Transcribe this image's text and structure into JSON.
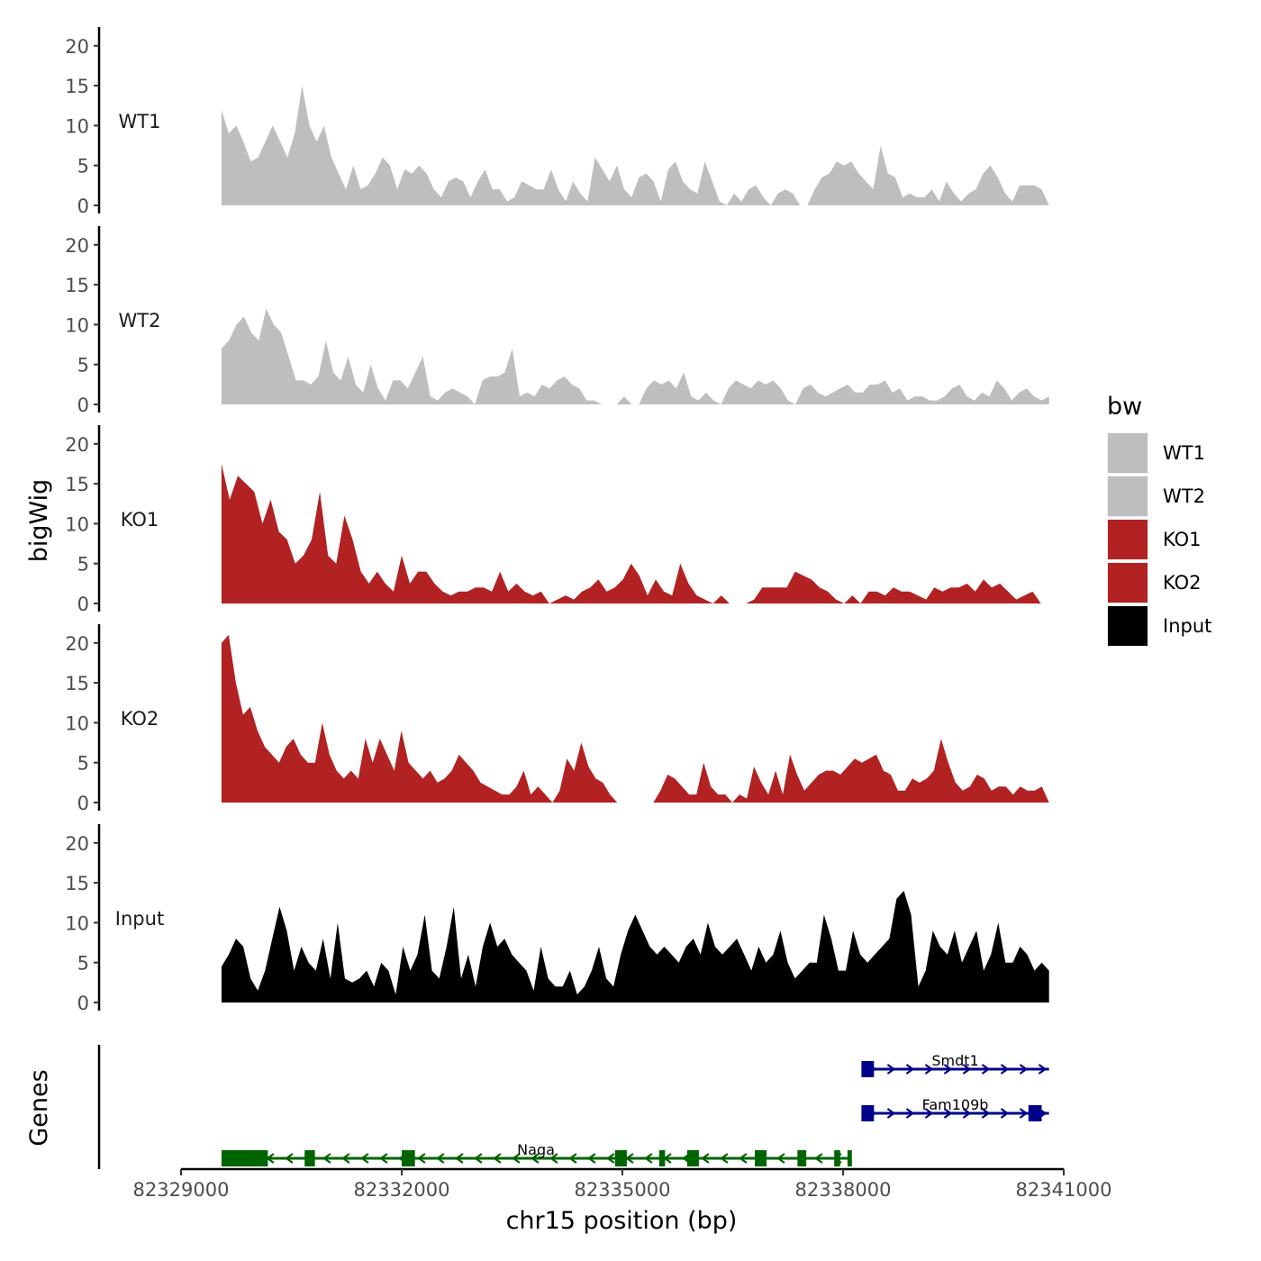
{
  "chart_data": {
    "type": "area",
    "region": "chr15",
    "xlabel": "chr15 position (bp)",
    "ylabel_tracks": "bigWig",
    "ylabel_genes": "Genes",
    "xlim": [
      82329000,
      82341000
    ],
    "x_ticks": [
      82329000,
      82332000,
      82335000,
      82338000,
      82341000
    ],
    "x_tick_labels": [
      "82329000",
      "82332000",
      "82335000",
      "82338000",
      "82341000"
    ],
    "y_ticks": [
      0,
      5,
      10,
      15,
      20
    ],
    "y_tick_labels": [
      "0",
      "5",
      "10",
      "15",
      "20"
    ],
    "ylim": [
      0,
      22
    ],
    "data_range": [
      82329550,
      82340800
    ],
    "legend": {
      "title": "bw",
      "items": [
        {
          "label": "WT1",
          "color": "#bebebe"
        },
        {
          "label": "WT2",
          "color": "#bebebe"
        },
        {
          "label": "KO1",
          "color": "#b22222"
        },
        {
          "label": "KO2",
          "color": "#b22222"
        },
        {
          "label": "Input",
          "color": "#000000"
        }
      ]
    },
    "series": [
      {
        "name": "WT1",
        "color": "#bebebe",
        "values": [
          12,
          9,
          10,
          8,
          5.5,
          6,
          8,
          10,
          8,
          6,
          9,
          15,
          10,
          8,
          10,
          6,
          4,
          2,
          5,
          2,
          2.5,
          4,
          6,
          5,
          2,
          4.5,
          4,
          5,
          4,
          2,
          1,
          3,
          3.5,
          3,
          1,
          3,
          4.5,
          2,
          2,
          0.5,
          1,
          3,
          2.5,
          2,
          2,
          4.5,
          2,
          0.5,
          3,
          1.5,
          0.5,
          6,
          4.5,
          3,
          5,
          2,
          1,
          3.5,
          4,
          3,
          0.5,
          4.5,
          5.5,
          3,
          2,
          1.5,
          5.5,
          3,
          0.5,
          0,
          1.5,
          0.5,
          2,
          2.5,
          1,
          0,
          1.5,
          2,
          1.5,
          0,
          0,
          2,
          3.5,
          4,
          5.5,
          5,
          5.5,
          4,
          3,
          2,
          7.5,
          4,
          3.5,
          1,
          1.5,
          1,
          1,
          2,
          0.5,
          3,
          1.5,
          0.5,
          1.5,
          2,
          4,
          5,
          3.5,
          1.5,
          0.5,
          2.5,
          2.5,
          2.5,
          2,
          0
        ]
      },
      {
        "name": "WT2",
        "color": "#bebebe",
        "values": [
          7,
          8,
          10,
          11,
          9,
          8,
          12,
          10,
          9,
          6,
          3,
          3,
          2.5,
          3.5,
          8,
          4,
          3,
          6,
          2.5,
          1.5,
          5,
          2,
          0.5,
          3,
          3,
          2,
          4,
          6,
          1,
          0.5,
          1.5,
          2,
          1.5,
          1,
          0,
          3,
          3.5,
          3.5,
          4,
          7,
          1,
          1.5,
          1,
          2.5,
          2,
          3,
          3.5,
          2.5,
          2,
          0.5,
          0.5,
          0,
          0,
          0,
          1,
          0,
          0,
          2,
          3,
          2.5,
          3,
          2,
          4,
          1,
          0.5,
          1.5,
          0.5,
          0,
          2,
          3,
          2.5,
          2,
          3,
          2.5,
          3,
          2,
          0.5,
          0,
          2,
          2.5,
          1.5,
          1,
          1.5,
          2,
          2.5,
          1.5,
          1.5,
          2.5,
          2.5,
          3,
          1.5,
          2,
          0.5,
          1,
          1,
          0.5,
          0.5,
          1,
          2,
          2.5,
          1,
          0.5,
          1.5,
          1,
          3,
          2,
          0.5,
          1.5,
          2,
          1,
          0.5,
          1
        ]
      },
      {
        "name": "KO1",
        "color": "#b22222",
        "values": [
          17.5,
          13,
          16,
          15,
          14,
          10,
          13,
          9,
          8,
          5,
          6,
          8,
          14,
          6,
          5,
          11,
          8,
          4,
          2.5,
          4,
          2.5,
          1.5,
          6,
          2.5,
          4,
          4,
          2.5,
          1.5,
          1,
          1.5,
          1.5,
          2,
          2,
          1.5,
          4,
          1.5,
          2.5,
          1.5,
          1,
          1.5,
          0,
          0.5,
          1,
          0.5,
          1.5,
          2,
          3,
          1.5,
          2,
          3,
          5,
          3.5,
          1,
          3,
          1.5,
          1,
          5,
          2.5,
          1,
          0.5,
          0,
          1,
          0,
          0,
          0,
          0.5,
          2,
          2,
          2,
          2,
          4,
          3.5,
          3,
          2,
          1.5,
          0.5,
          0,
          1,
          0,
          1.5,
          1.5,
          1,
          2,
          1.5,
          1.5,
          1,
          0.5,
          2,
          1.5,
          2,
          2,
          2.5,
          1.5,
          3,
          2,
          2.5,
          1.5,
          0.5,
          1,
          1.5,
          0,
          0
        ]
      },
      {
        "name": "KO2",
        "color": "#b22222",
        "values": [
          20,
          21,
          15,
          11,
          12,
          9,
          7,
          6,
          5,
          7,
          8,
          6,
          5,
          5,
          10,
          6,
          4,
          3,
          4,
          3,
          8,
          5,
          8,
          6,
          4,
          9,
          5,
          4,
          3,
          4,
          2.5,
          3,
          4,
          6,
          5,
          4,
          2.5,
          2,
          1.5,
          1,
          1,
          2,
          4,
          1,
          2,
          1,
          0,
          1.5,
          5.5,
          4,
          7.5,
          4.5,
          3,
          2.5,
          1,
          0,
          0,
          0,
          0,
          0,
          0,
          1.5,
          3.5,
          3,
          2,
          1,
          1,
          5,
          2,
          1,
          1,
          0,
          1,
          0.5,
          4.5,
          2.5,
          1,
          4,
          1,
          6,
          3.5,
          1.5,
          2.5,
          3.5,
          4,
          4,
          3.5,
          4.5,
          5.5,
          5,
          5.5,
          6,
          4,
          3.5,
          1.5,
          1.5,
          3,
          2.5,
          3,
          4,
          8,
          5,
          2.5,
          1.5,
          2,
          3.5,
          3,
          1.5,
          2,
          2,
          1,
          2,
          1.5,
          1.5,
          2,
          0
        ]
      },
      {
        "name": "Input",
        "color": "#000000",
        "values": [
          4.5,
          6,
          8,
          7,
          3,
          1.5,
          4,
          8,
          12,
          9,
          4,
          7,
          5,
          4,
          8,
          3,
          10,
          3,
          2.5,
          3,
          4,
          2,
          5,
          4,
          1,
          7,
          4,
          6,
          11,
          4,
          3,
          7,
          12,
          3,
          6,
          2,
          7,
          10,
          7,
          8,
          6,
          5,
          4,
          1.5,
          7,
          3,
          2,
          2,
          4,
          1,
          2,
          4,
          7,
          3,
          2,
          6,
          9,
          11,
          9,
          7,
          6,
          7,
          6,
          5,
          7,
          8,
          6,
          10,
          7,
          6,
          7,
          8,
          6,
          4,
          7,
          5,
          6,
          9,
          5,
          3,
          4,
          5,
          5,
          11,
          8,
          4,
          4,
          9,
          6,
          5,
          6,
          7,
          8,
          13,
          14,
          11,
          2,
          4,
          9,
          7,
          6,
          9,
          5,
          7,
          9,
          4,
          6,
          10,
          5,
          5,
          7,
          6,
          4,
          5,
          4
        ]
      }
    ],
    "genes": [
      {
        "name": "Smdt1",
        "strand": "+",
        "start": 82338250,
        "end": 82340800,
        "row": 1,
        "color": "#00008b",
        "exons": [
          [
            82338250,
            82338420
          ]
        ]
      },
      {
        "name": "Fam109b",
        "strand": "+",
        "start": 82338250,
        "end": 82340800,
        "row": 2,
        "color": "#00008b",
        "exons": [
          [
            82338250,
            82338420
          ],
          [
            82340520,
            82340700
          ]
        ]
      },
      {
        "name": "Naga",
        "strand": "-",
        "start": 82329550,
        "end": 82338100,
        "row": 3,
        "color": "#006400",
        "exons": [
          [
            82329550,
            82330180
          ],
          [
            82330680,
            82330820
          ],
          [
            82332000,
            82332180
          ],
          [
            82334900,
            82335060
          ],
          [
            82335500,
            82335580
          ],
          [
            82335880,
            82336040
          ],
          [
            82336800,
            82336960
          ],
          [
            82337380,
            82337500
          ],
          [
            82337880,
            82337960
          ],
          [
            82338060,
            82338120
          ]
        ]
      }
    ]
  }
}
